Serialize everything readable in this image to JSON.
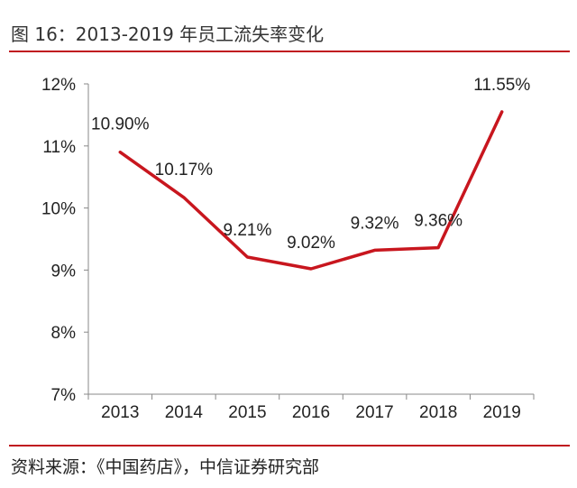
{
  "figure": {
    "title": "图 16：2013-2019 年员工流失率变化",
    "source": "资料来源：《中国药店》，中信证券研究部"
  },
  "chart_data": {
    "type": "line",
    "categories": [
      "2013",
      "2014",
      "2015",
      "2016",
      "2017",
      "2018",
      "2019"
    ],
    "series": [
      {
        "values": [
          10.9,
          10.17,
          9.21,
          9.02,
          9.32,
          9.36,
          11.55
        ]
      }
    ],
    "data_labels": [
      "10.90%",
      "10.17%",
      "9.21%",
      "9.02%",
      "9.32%",
      "9.36%",
      "11.55%"
    ],
    "yticks": [
      "7%",
      "8%",
      "9%",
      "10%",
      "11%",
      "12%"
    ],
    "ylim": [
      7,
      12
    ],
    "grid": false,
    "line_color": "#c8161e"
  }
}
